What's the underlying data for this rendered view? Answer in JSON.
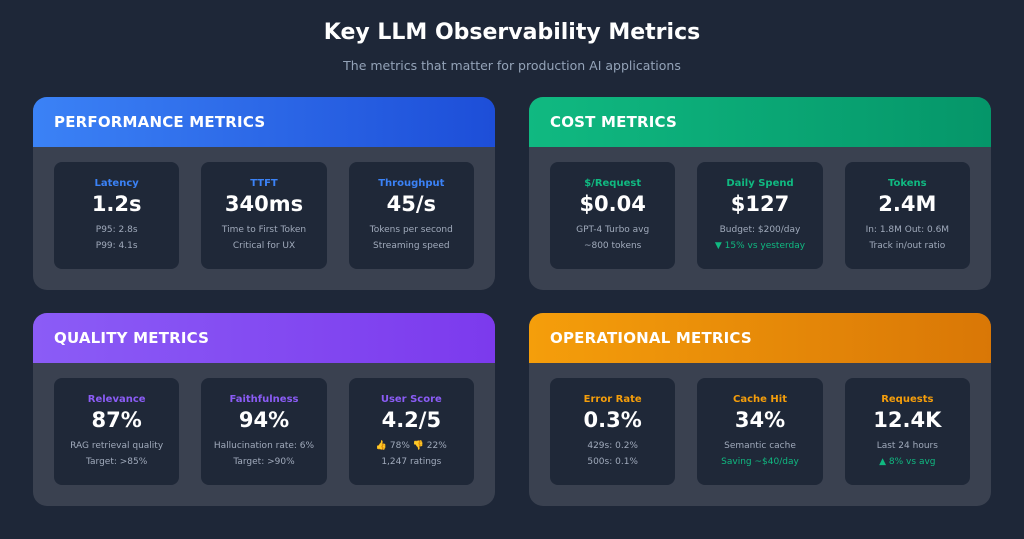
{
  "header": {
    "title": "Key LLM Observability Metrics",
    "subtitle": "The metrics that matter for production AI applications"
  },
  "colors": {
    "performance": "#3b82f6",
    "cost": "#10b981",
    "quality": "#8b5cf6",
    "operational": "#f59e0b"
  },
  "panels": [
    {
      "id": "performance",
      "title": "PERFORMANCE METRICS",
      "cards": [
        {
          "label": "Latency",
          "value": "1.2s",
          "line1": "P95: 2.8s",
          "line2": "P99: 4.1s"
        },
        {
          "label": "TTFT",
          "value": "340ms",
          "line1": "Time to First Token",
          "line2": "Critical for UX"
        },
        {
          "label": "Throughput",
          "value": "45/s",
          "line1": "Tokens per second",
          "line2": "Streaming speed"
        }
      ]
    },
    {
      "id": "cost",
      "title": "COST METRICS",
      "cards": [
        {
          "label": "$/Request",
          "value": "$0.04",
          "line1": "GPT-4 Turbo avg",
          "line2": "~800 tokens"
        },
        {
          "label": "Daily Spend",
          "value": "$127",
          "line1": "Budget: $200/day",
          "line2": "▼ 15% vs yesterday"
        },
        {
          "label": "Tokens",
          "value": "2.4M",
          "line1": "In: 1.8M Out: 0.6M",
          "line2": "Track in/out ratio"
        }
      ]
    },
    {
      "id": "quality",
      "title": "QUALITY METRICS",
      "cards": [
        {
          "label": "Relevance",
          "value": "87%",
          "line1": "RAG retrieval quality",
          "line2": "Target: >85%"
        },
        {
          "label": "Faithfulness",
          "value": "94%",
          "line1": "Hallucination rate: 6%",
          "line2": "Target: >90%"
        },
        {
          "label": "User Score",
          "value": "4.2/5",
          "line1": "👍 78% 👎 22%",
          "line2": "1,247 ratings"
        }
      ]
    },
    {
      "id": "operational",
      "title": "OPERATIONAL METRICS",
      "cards": [
        {
          "label": "Error Rate",
          "value": "0.3%",
          "line1": "429s: 0.2%",
          "line2": "500s: 0.1%"
        },
        {
          "label": "Cache Hit",
          "value": "34%",
          "line1": "Semantic cache",
          "line2": "Saving ~$40/day"
        },
        {
          "label": "Requests",
          "value": "12.4K",
          "line1": "Last 24 hours",
          "line2": "▲ 8% vs avg"
        }
      ]
    }
  ]
}
